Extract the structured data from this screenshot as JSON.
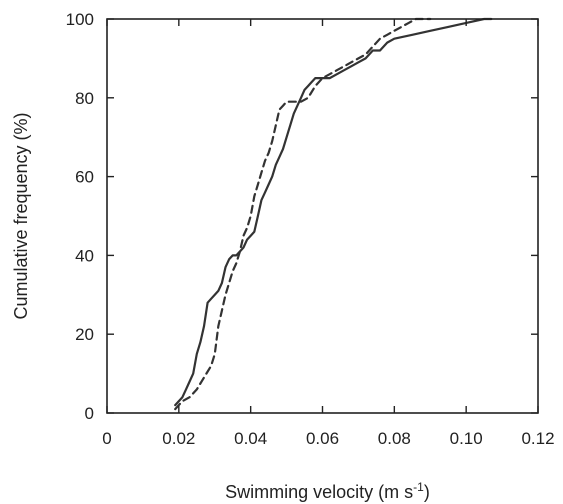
{
  "chart_data": {
    "type": "line",
    "title": "",
    "xlabel": "Swimming velocity (m s",
    "xlabel_sup": "-1",
    "xlabel_close": ")",
    "ylabel": "Cumulative frequency (%)",
    "xlim": [
      0,
      0.12
    ],
    "ylim": [
      0,
      100
    ],
    "xticks": [
      0,
      0.02,
      0.04,
      0.06,
      0.08,
      0.1,
      0.12
    ],
    "xtick_labels": [
      "0",
      "0.02",
      "0.04",
      "0.06",
      "0.08",
      "0.10",
      "0.12"
    ],
    "yticks": [
      0,
      20,
      40,
      60,
      80,
      100
    ],
    "ytick_labels": [
      "0",
      "20",
      "40",
      "60",
      "80",
      "100"
    ],
    "grid": false,
    "legend": "none",
    "series": [
      {
        "style": "solid",
        "x": [
          0.019,
          0.021,
          0.022,
          0.023,
          0.024,
          0.025,
          0.026,
          0.027,
          0.028,
          0.029,
          0.03,
          0.031,
          0.032,
          0.033,
          0.034,
          0.035,
          0.036,
          0.037,
          0.038,
          0.039,
          0.04,
          0.041,
          0.042,
          0.043,
          0.044,
          0.045,
          0.046,
          0.047,
          0.048,
          0.049,
          0.05,
          0.051,
          0.052,
          0.053,
          0.054,
          0.055,
          0.056,
          0.057,
          0.058,
          0.059,
          0.06,
          0.062,
          0.064,
          0.066,
          0.068,
          0.07,
          0.072,
          0.074,
          0.076,
          0.078,
          0.08,
          0.085,
          0.09,
          0.095,
          0.1,
          0.105,
          0.107
        ],
        "y": [
          2,
          4,
          6,
          8,
          10,
          15,
          18,
          22,
          28,
          29,
          30,
          31,
          33,
          37,
          39,
          40,
          40,
          41,
          42,
          44,
          45,
          46,
          50,
          54,
          56,
          58,
          60,
          63,
          65,
          67,
          70,
          73,
          76,
          78,
          80,
          82,
          83,
          84,
          85,
          85,
          85,
          85,
          86,
          87,
          88,
          89,
          90,
          92,
          92,
          94,
          95,
          96,
          97,
          98,
          99,
          100,
          100
        ]
      },
      {
        "style": "dashed",
        "x": [
          0.019,
          0.021,
          0.023,
          0.025,
          0.027,
          0.029,
          0.03,
          0.031,
          0.032,
          0.033,
          0.034,
          0.035,
          0.036,
          0.037,
          0.038,
          0.039,
          0.04,
          0.041,
          0.042,
          0.043,
          0.044,
          0.045,
          0.046,
          0.047,
          0.048,
          0.049,
          0.05,
          0.052,
          0.054,
          0.056,
          0.058,
          0.06,
          0.062,
          0.064,
          0.066,
          0.068,
          0.07,
          0.072,
          0.074,
          0.076,
          0.078,
          0.08,
          0.082,
          0.084,
          0.086,
          0.088,
          0.09
        ],
        "y": [
          1,
          3,
          4,
          6,
          9,
          12,
          15,
          22,
          26,
          30,
          33,
          36,
          38,
          41,
          45,
          47,
          50,
          55,
          58,
          61,
          64,
          66,
          69,
          73,
          77,
          78,
          79,
          79,
          79,
          80,
          83,
          85,
          86,
          87,
          88,
          89,
          90,
          91,
          93,
          95,
          96,
          97,
          98,
          99,
          100,
          100,
          100
        ]
      }
    ]
  }
}
